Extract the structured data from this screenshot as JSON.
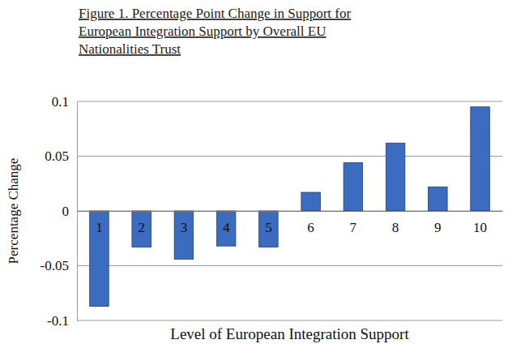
{
  "chart_data": {
    "type": "bar",
    "title": "Figure 1. Percentage Point Change in Support for European Integration Support by Overall EU Nationalities Trust",
    "x_label": "Level of European Integration Support",
    "y_label": "Percentage Change",
    "categories": [
      "1",
      "2",
      "3",
      "4",
      "5",
      "6",
      "7",
      "8",
      "9",
      "10"
    ],
    "values": [
      -0.087,
      -0.033,
      -0.044,
      -0.032,
      -0.033,
      0.017,
      0.044,
      0.062,
      0.022,
      0.095
    ],
    "color": "#3b6cc0",
    "ylim": [
      -0.1,
      0.1
    ],
    "yticks": [
      -0.1,
      -0.05,
      0,
      0.05,
      0.1
    ],
    "grid": true
  }
}
